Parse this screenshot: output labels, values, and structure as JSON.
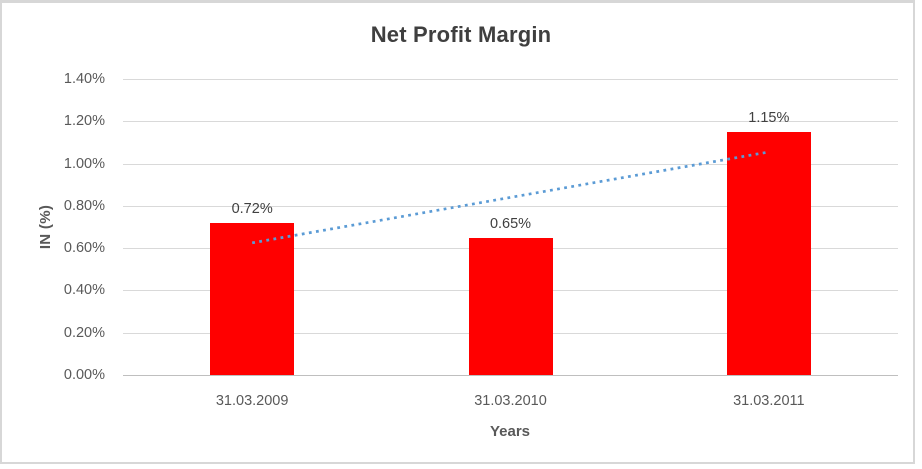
{
  "chart_data": {
    "type": "bar",
    "title": "Net Profit Margin",
    "xlabel": "Years",
    "ylabel": "IN (%)",
    "categories": [
      "31.03.2009",
      "31.03.2010",
      "31.03.2011"
    ],
    "values": [
      0.72,
      0.65,
      1.15
    ],
    "data_labels": [
      "0.72%",
      "0.65%",
      "1.15%"
    ],
    "ylim": [
      0,
      1.4
    ],
    "ytick_step": 0.2,
    "ytick_labels": [
      "0.00%",
      "0.20%",
      "0.40%",
      "0.60%",
      "0.80%",
      "1.00%",
      "1.20%",
      "1.40%"
    ],
    "grid": true,
    "legend": false,
    "bar_color": "#FF0000",
    "trendline": {
      "style": "dotted",
      "color": "#5B9BD5",
      "start": {
        "category_index": 0,
        "value": 0.625
      },
      "end": {
        "category_index": 2,
        "value": 1.055
      }
    },
    "colors": {
      "title": "#3F3F3F",
      "tick_label": "#595959",
      "data_label": "#404040",
      "gridline": "#D9D9D9",
      "axis_line": "#BFBFBF",
      "frame_border": "#D7D7D7",
      "background": "#FFFFFF"
    }
  }
}
